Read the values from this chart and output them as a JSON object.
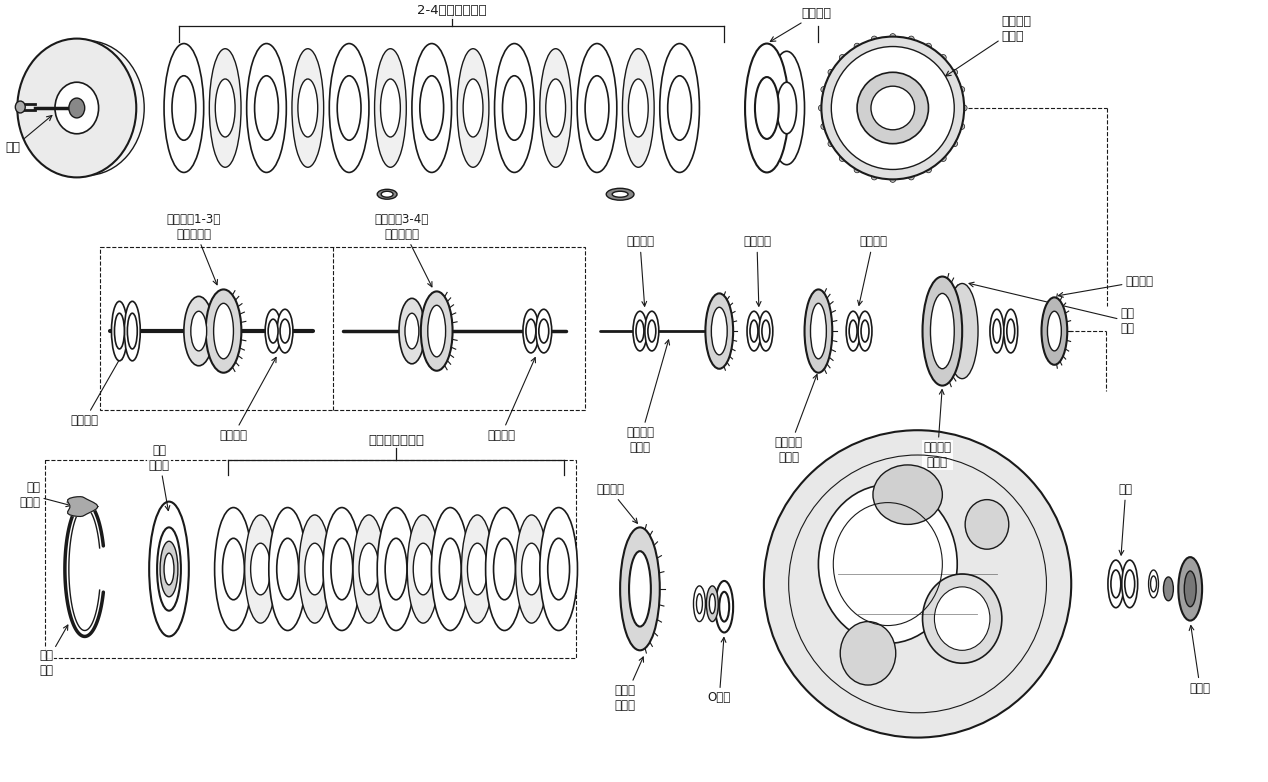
{
  "background_color": "#ffffff",
  "line_color": "#1a1a1a",
  "figure_width": 12.68,
  "figure_height": 7.82,
  "labels": {
    "you_beng": "油泵",
    "clutch_24": "2-4档制动离合器",
    "support_sleeve": "支撑套筒",
    "reverse_clutch": "倒档接合\n离合器",
    "turbine_clutch_13": "涡轮轴和1-3档\n接合离合器",
    "pump_clutch_34": "泵轮轴和3-4档\n接合离合器",
    "bearing_assy": "轴承组件",
    "small_planet_drive": "小行星轮\n驱动轴",
    "small_sun_drive": "小太阳轮\n驱动壳",
    "large_sun_drive": "大太阳轮\n驱动壳",
    "small_sun": "小太阳轮",
    "large_sun": "大太\n阳轮",
    "thrust_washer": "止推垫片",
    "rubber_baffle": "橡胶\n挡油板",
    "one_way_clutch": "单向\n离合器",
    "reverse_brake": "倒档制动离合器",
    "snap_ring": "开口\n卡子",
    "planet_carrier": "行星齿\n轮支架",
    "o_ring": "O形圈",
    "bearing": "轴承",
    "seal": "密封垫"
  }
}
